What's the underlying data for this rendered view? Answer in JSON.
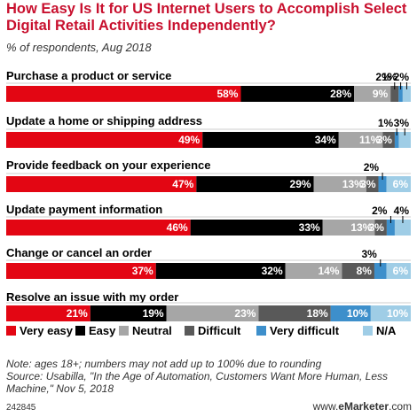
{
  "chart_data": {
    "type": "bar",
    "orientation": "horizontal",
    "stacked": true,
    "title": "How Easy Is It for US Internet Users to Accomplish Select Digital Retail Activities Independently?",
    "subtitle": "% of respondents, Aug 2018",
    "xlim": [
      0,
      100
    ],
    "grid": false,
    "legend_position": "bottom",
    "categories": [
      "Purchase a product or service",
      "Update a home or shipping address",
      "Provide feedback on your experience",
      "Update payment information",
      "Change or cancel an order",
      "Resolve an issue with my order"
    ],
    "series": [
      {
        "name": "Very easy",
        "color": "#e30613",
        "values": [
          58,
          49,
          47,
          46,
          37,
          21
        ]
      },
      {
        "name": "Easy",
        "color": "#000000",
        "values": [
          28,
          34,
          29,
          33,
          32,
          19
        ]
      },
      {
        "name": "Neutral",
        "color": "#a6a6a6",
        "values": [
          9,
          11,
          13,
          13,
          14,
          23
        ]
      },
      {
        "name": "Difficult",
        "color": "#595959",
        "values": [
          2,
          3,
          3,
          3,
          8,
          18
        ]
      },
      {
        "name": "Very difficult",
        "color": "#3d8fcb",
        "values": [
          1,
          1,
          2,
          2,
          3,
          10
        ]
      },
      {
        "name": "N/A",
        "color": "#9fcde6",
        "values": [
          2,
          3,
          6,
          4,
          6,
          10
        ]
      }
    ],
    "data_labels": [
      [
        "58%",
        "28%",
        "9%",
        "2%",
        "1%",
        "2%"
      ],
      [
        "49%",
        "34%",
        "11%",
        "3%",
        "1%",
        "3%"
      ],
      [
        "47%",
        "29%",
        "13%",
        "3%",
        "2%",
        "6%"
      ],
      [
        "46%",
        "33%",
        "13%",
        "3%",
        "2%",
        "4%"
      ],
      [
        "37%",
        "32%",
        "14%",
        "8%",
        "3%",
        "6%"
      ],
      [
        "21%",
        "19%",
        "23%",
        "18%",
        "10%",
        "10%"
      ]
    ]
  },
  "notes": {
    "line1": "Note: ages 18+; numbers may not add up to 100% due to rounding",
    "line2": "Source: Usabilla, \"In the Age of Automation, Customers Want More Human, Less Machine,\" Nov 5, 2018"
  },
  "footer": {
    "chart_id": "242845",
    "brand_prefix": "www.",
    "brand_name": "eMarketer",
    "brand_suffix": ".com"
  }
}
